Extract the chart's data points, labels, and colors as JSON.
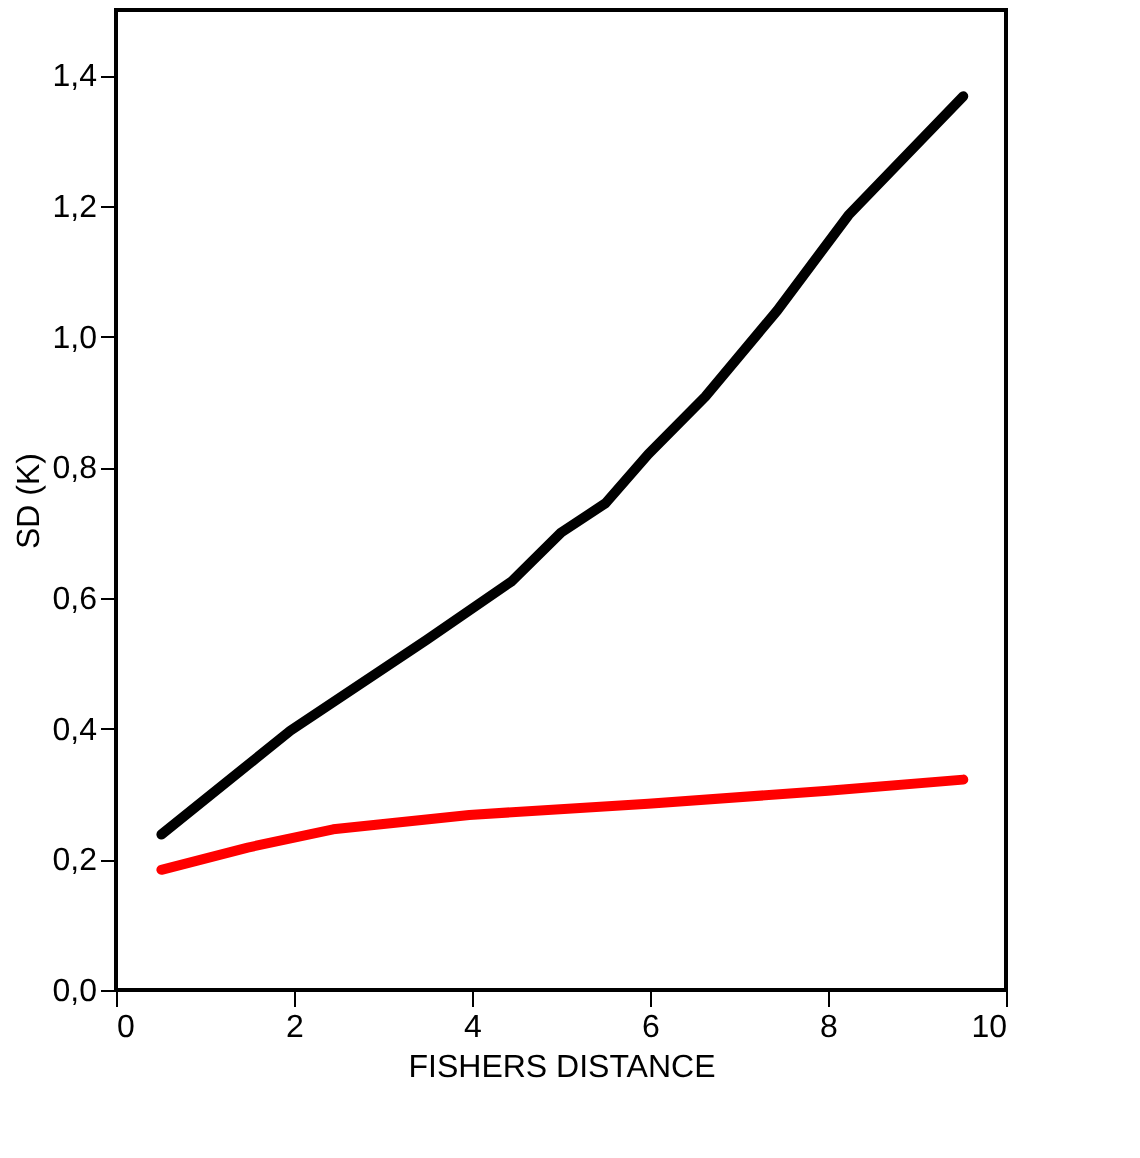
{
  "chart_data": {
    "type": "line",
    "xlabel": "FISHERS DISTANCE",
    "ylabel": "SD (K)",
    "xlim": [
      0,
      10
    ],
    "xticks": [
      0,
      2,
      4,
      6,
      8,
      10
    ],
    "ylim": [
      0,
      1.5
    ],
    "yticks": [
      {
        "value": 0,
        "label": "0,0"
      },
      {
        "value": 0.2,
        "label": "0,2"
      },
      {
        "value": 0.4,
        "label": "0,4"
      },
      {
        "value": 0.6,
        "label": "0,6"
      },
      {
        "value": 0.8,
        "label": "0,8"
      },
      {
        "value": 1.0,
        "label": "1,0"
      },
      {
        "value": 1.2,
        "label": "1,2"
      },
      {
        "value": 1.4,
        "label": "1,4"
      }
    ],
    "grid": false,
    "line_style": "solid",
    "series": [
      {
        "color": "#000000",
        "x": [
          0.51,
          1.96,
          3.49,
          4.45,
          5.0,
          5.5,
          5.98,
          6.62,
          7.43,
          8.23,
          9.52
        ],
        "values": [
          0.238,
          0.397,
          0.536,
          0.626,
          0.7,
          0.745,
          0.82,
          0.908,
          1.04,
          1.186,
          1.368
        ]
      },
      {
        "color": "#ff0000",
        "x": [
          0.51,
          1.48,
          2.44,
          3.97,
          5.98,
          8.0,
          9.52
        ],
        "values": [
          0.184,
          0.218,
          0.246,
          0.268,
          0.285,
          0.305,
          0.322
        ]
      }
    ]
  }
}
